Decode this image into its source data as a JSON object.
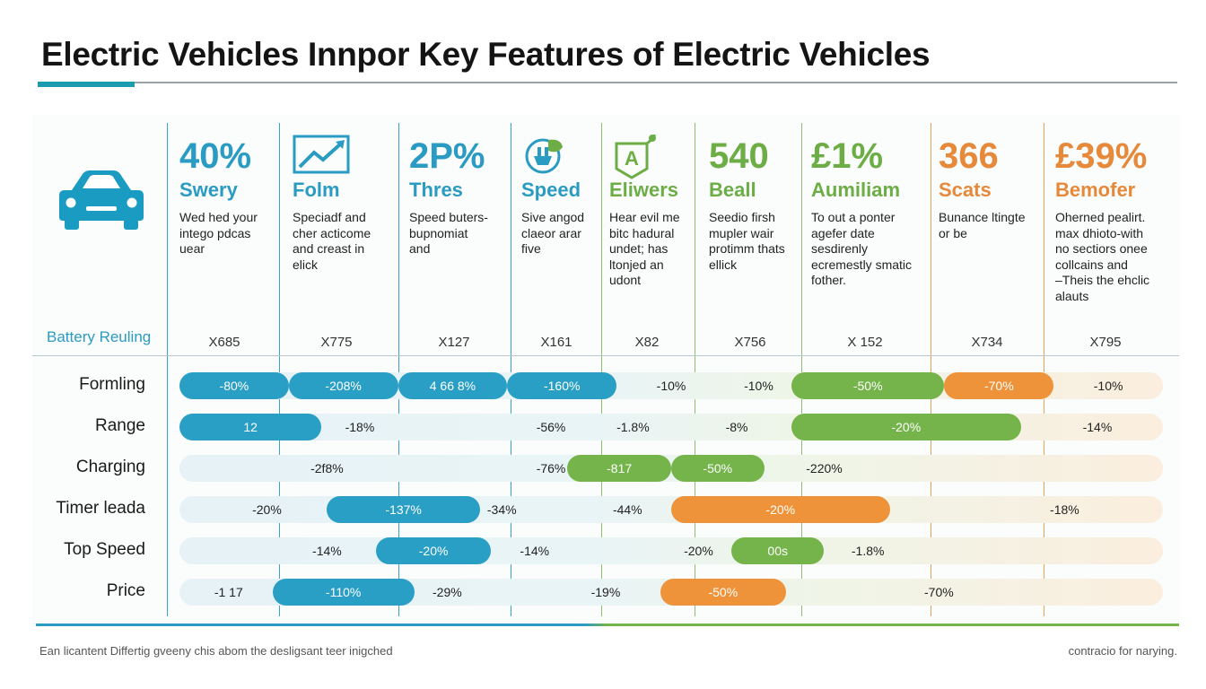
{
  "title": "Electric Vehicles Innpor Key Features of Electric Vehicles",
  "colors": {
    "blue": "#2a9fc6",
    "green": "#74b44a",
    "orange": "#ef933a"
  },
  "columns": [
    {
      "big": "40%",
      "sub": "Swery",
      "desc": [
        "Wed hed your",
        "intego pdcas",
        "uear"
      ],
      "color": "blue"
    },
    {
      "icon": "trend-chart-icon",
      "sub": "Folm",
      "desc": [
        "Speciadf and",
        "cher acticome",
        "and creast in",
        "elick"
      ],
      "color": "blue"
    },
    {
      "big": "2P%",
      "sub": "Thres",
      "desc": [
        "Speed buters-",
        "bupnomiat",
        "and"
      ],
      "color": "blue"
    },
    {
      "icon": "plug-leaf-icon",
      "sub": "Speed",
      "desc": [
        "Sive angod",
        "claeor arar",
        "five"
      ],
      "color": "blue"
    },
    {
      "icon": "badge-a-icon",
      "sub": "Eliwers",
      "desc": [
        "Hear evil me",
        "bitc hadural",
        "undet; has",
        "ltonjed an",
        "udont"
      ],
      "color": "green"
    },
    {
      "big": "540",
      "sub": "Beall",
      "desc": [
        "Seedio firsh",
        "mupler wair",
        "protimm thats",
        "ellick"
      ],
      "color": "green"
    },
    {
      "big": "£1%",
      "sub": "Aumiliam",
      "desc": [
        "To out a ponter",
        "agefer date",
        "sesdirenly",
        "ecremestly smatic",
        "fother."
      ],
      "color": "green"
    },
    {
      "big": "366",
      "sub": "Scats",
      "desc": [
        "Bunance ltingte",
        "or be"
      ],
      "color": "orange"
    },
    {
      "big": "£39%",
      "sub": "Bemofer",
      "desc": [
        "Oherned pealirt.",
        "max dhioto-with",
        "no sectiors onee",
        "collcains and",
        "–Theis the ehclic",
        "alauts"
      ],
      "color": "orange"
    }
  ],
  "legend_label": "Battery Reuling",
  "footer_left": "Ean licantent Differtig gveeny chis abom the desligsant teer inigched",
  "footer_right": "contracio for narying.",
  "chart_data": {
    "type": "bar",
    "title": "Electric Vehicles Innpor Key Features of Electric Vehicles",
    "x_tick_labels": [
      "X685",
      "X775",
      "X127",
      "X161",
      "X82",
      "X756",
      "X 152",
      "X734",
      "X795"
    ],
    "rows": [
      {
        "label": "Formling",
        "segments": [
          {
            "start": 0,
            "end": 1,
            "color": "blue",
            "label": "-80%"
          },
          {
            "start": 1,
            "end": 2,
            "color": "blue",
            "label": "-208%"
          },
          {
            "start": 2,
            "end": 3,
            "color": "blue",
            "label": "4 66 8%"
          },
          {
            "start": 3,
            "end": 4,
            "color": "blue",
            "label": "-160%"
          },
          {
            "start": 5.6,
            "end": 7,
            "color": "green",
            "label": "-50%"
          },
          {
            "start": 7,
            "end": 8,
            "color": "orange",
            "label": "-70%"
          }
        ],
        "values": [
          {
            "at": 4.5,
            "label": "-10%"
          },
          {
            "at": 5.3,
            "label": "-10%"
          },
          {
            "at": 8.5,
            "label": "-10%"
          }
        ]
      },
      {
        "label": "Range",
        "segments": [
          {
            "start": 0,
            "end": 1.3,
            "color": "blue",
            "label": "12"
          },
          {
            "start": 5.6,
            "end": 7.7,
            "color": "green",
            "label": "-20%"
          }
        ],
        "values": [
          {
            "at": 1.65,
            "label": "-18%"
          },
          {
            "at": 3.4,
            "label": "-56%"
          },
          {
            "at": 4.15,
            "label": "-1.8%"
          },
          {
            "at": 5.1,
            "label": "-8%"
          },
          {
            "at": 8.4,
            "label": "-14%"
          }
        ]
      },
      {
        "label": "Charging",
        "segments": [
          {
            "start": 3.55,
            "end": 4.5,
            "color": "green",
            "label": "-817"
          },
          {
            "start": 4.5,
            "end": 5.35,
            "color": "green",
            "label": "-50%"
          }
        ],
        "values": [
          {
            "at": 1.35,
            "label": "-2f8%"
          },
          {
            "at": 3.4,
            "label": "-76%"
          },
          {
            "at": 5.9,
            "label": "-220%"
          }
        ]
      },
      {
        "label": "Timer leada",
        "segments": [
          {
            "start": 1.35,
            "end": 2.75,
            "color": "blue",
            "label": "-137%"
          },
          {
            "start": 4.5,
            "end": 6.5,
            "color": "orange",
            "label": "-20%"
          }
        ],
        "values": [
          {
            "at": 0.8,
            "label": "-20%"
          },
          {
            "at": 2.95,
            "label": "-34%"
          },
          {
            "at": 4.1,
            "label": "-44%"
          },
          {
            "at": 8.1,
            "label": "-18%"
          }
        ]
      },
      {
        "label": "Top Speed",
        "segments": [
          {
            "start": 1.8,
            "end": 2.85,
            "color": "blue",
            "label": "-20%"
          },
          {
            "start": 5.05,
            "end": 5.9,
            "color": "green",
            "label": "00s"
          }
        ],
        "values": [
          {
            "at": 1.35,
            "label": "-14%"
          },
          {
            "at": 3.25,
            "label": "-14%"
          },
          {
            "at": 4.75,
            "label": "-20%"
          },
          {
            "at": 6.3,
            "label": "-1.8%"
          }
        ]
      },
      {
        "label": "Price",
        "segments": [
          {
            "start": 0.85,
            "end": 2.15,
            "color": "blue",
            "label": "-110%"
          },
          {
            "start": 4.4,
            "end": 5.55,
            "color": "orange",
            "label": "-50%"
          }
        ],
        "values": [
          {
            "at": 0.45,
            "label": "-1 17"
          },
          {
            "at": 2.45,
            "label": "-29%"
          },
          {
            "at": 3.9,
            "label": "-19%"
          },
          {
            "at": 6.95,
            "label": "-70%"
          }
        ]
      }
    ]
  }
}
